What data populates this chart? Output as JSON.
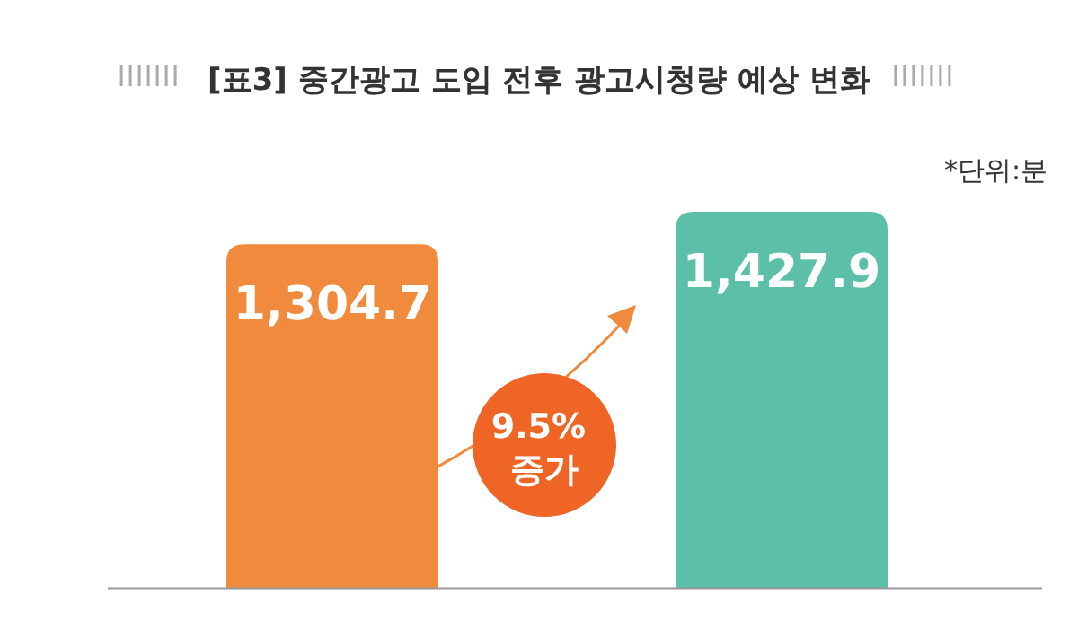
{
  "chart_data": {
    "type": "bar",
    "title": "[표3] 중간광고 도입 전후 광고시청량 예상 변화",
    "annotations": [
      "*단위:분",
      "9.5% 증가"
    ],
    "categories": [
      null,
      null
    ],
    "values": [
      1304.7,
      1427.9
    ],
    "colors": [
      "#f08a3c",
      "#5cbfa8"
    ],
    "value_labels": [
      "1,304.7",
      "1,427.9"
    ]
  }
}
